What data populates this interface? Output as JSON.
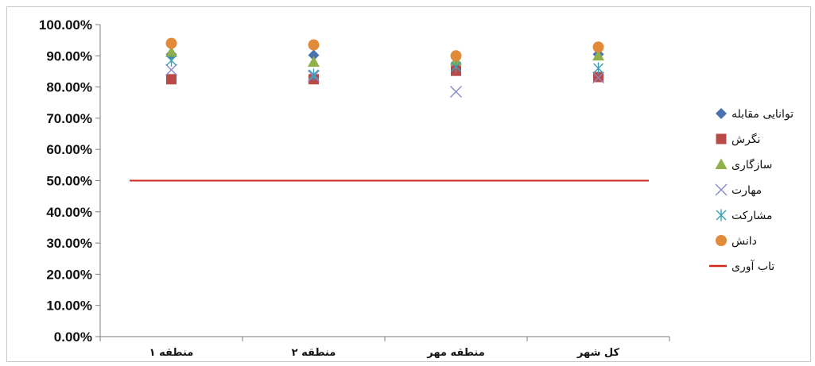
{
  "chart_data": {
    "type": "scatter",
    "categories": [
      "منطقه ۱",
      "منطقه ۲",
      "منطقه مهر",
      "کل شهر"
    ],
    "ylim": [
      0,
      100
    ],
    "yticks": [
      "0.00%",
      "10.00%",
      "20.00%",
      "30.00%",
      "40.00%",
      "50.00%",
      "60.00%",
      "70.00%",
      "80.00%",
      "90.00%",
      "100.00%"
    ],
    "grid": false,
    "legend_position": "right",
    "series": [
      {
        "name": "توانایی مقابله",
        "marker": "diamond",
        "color": "#4a72b0",
        "values": [
          90.5,
          90.2,
          87.5,
          90.5
        ]
      },
      {
        "name": "نگرش",
        "marker": "square",
        "color": "#b94a48",
        "values": [
          82.5,
          82.5,
          85.2,
          83.2
        ]
      },
      {
        "name": "سازگاری",
        "marker": "triangle",
        "color": "#8fb04a",
        "values": [
          91.2,
          88.0,
          88.5,
          90.0
        ]
      },
      {
        "name": "مهارت",
        "marker": "x",
        "color": "#8888c8",
        "values": [
          85.5,
          83.5,
          78.5,
          83.0
        ]
      },
      {
        "name": "مشارکت",
        "marker": "asterisk",
        "color": "#3aa0b8",
        "values": [
          88.5,
          84.0,
          86.5,
          86.0
        ]
      },
      {
        "name": "دانش",
        "marker": "circle",
        "color": "#e08a3a",
        "values": [
          94.0,
          93.5,
          90.0,
          92.8
        ]
      },
      {
        "name": "تاب آوری",
        "marker": "line",
        "color": "#d0281e",
        "values": [
          50,
          50,
          50,
          50
        ]
      }
    ]
  }
}
